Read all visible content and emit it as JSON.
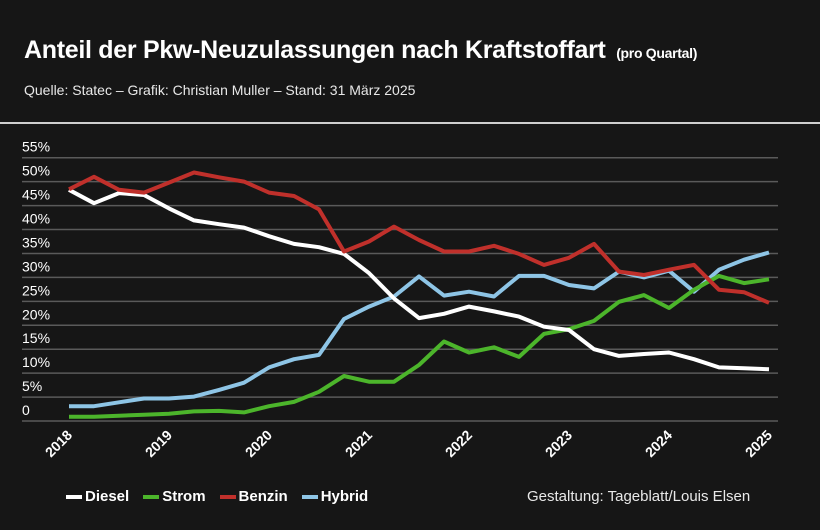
{
  "header": {
    "title": "Anteil der Pkw-Neuzulassungen nach Kraftstoffart",
    "title_suffix": "(pro Quartal)",
    "source": "Quelle: Statec – Grafik: Christian Muller – Stand: 31 März 2025"
  },
  "credit": "Gestaltung: Tageblatt/Louis Elsen",
  "chart_data": {
    "type": "line",
    "title": "Anteil der Pkw-Neuzulassungen nach Kraftstoffart (pro Quartal)",
    "xlabel": "",
    "ylabel": "",
    "x_start": 2018,
    "x_step": 0.25,
    "xlim": [
      2018,
      2025
    ],
    "x_ticks": [
      "2018",
      "2019",
      "2020",
      "2021",
      "2022",
      "2023",
      "2024",
      "2025"
    ],
    "ylim": [
      0,
      55
    ],
    "y_ticks": [
      "0",
      "5%",
      "10%",
      "15%",
      "20%",
      "25%",
      "30%",
      "35%",
      "40%",
      "45%",
      "50%",
      "55%"
    ],
    "grid": true,
    "legend_position": "bottom-left",
    "series": [
      {
        "name": "Diesel",
        "color": "#ffffff",
        "values": [
          48.3,
          45.5,
          47.6,
          47.2,
          44.4,
          41.9,
          41.1,
          40.4,
          38.6,
          37,
          36.3,
          34.9,
          30.9,
          25.6,
          21.5,
          22.4,
          23.9,
          22.9,
          21.8,
          19.7,
          19,
          15,
          13.6,
          14,
          14.3,
          12.9,
          11.2,
          11,
          10.8
        ]
      },
      {
        "name": "Strom",
        "color": "#4cb52b",
        "values": [
          0.9,
          0.9,
          1.1,
          1.3,
          1.5,
          2,
          2.1,
          1.8,
          3.1,
          4,
          6.1,
          9.4,
          8.2,
          8.2,
          11.7,
          16.6,
          14.3,
          15.4,
          13.4,
          18.2,
          19.2,
          20.9,
          24.9,
          26.3,
          23.6,
          27.4,
          30.3,
          28.8,
          29.6
        ]
      },
      {
        "name": "Benzin",
        "color": "#c0302b",
        "values": [
          48.4,
          51,
          48.3,
          47.7,
          49.8,
          51.9,
          50.9,
          50,
          47.7,
          47,
          44.2,
          35.4,
          37.5,
          40.6,
          37.8,
          35.4,
          35.4,
          36.6,
          34.9,
          32.6,
          34.1,
          37,
          31.2,
          30.5,
          31.6,
          32.6,
          27.4,
          26.9,
          24.7
        ]
      },
      {
        "name": "Hybrid",
        "color": "#8ec5e6",
        "values": [
          3.1,
          3.1,
          3.9,
          4.7,
          4.7,
          5.1,
          6.5,
          8,
          11.2,
          12.9,
          13.8,
          21.3,
          23.9,
          26,
          30.2,
          26.2,
          27,
          26,
          30.3,
          30.3,
          28.4,
          27.7,
          31.2,
          30,
          31.4,
          27,
          31.6,
          33.7,
          35.2
        ]
      }
    ]
  }
}
